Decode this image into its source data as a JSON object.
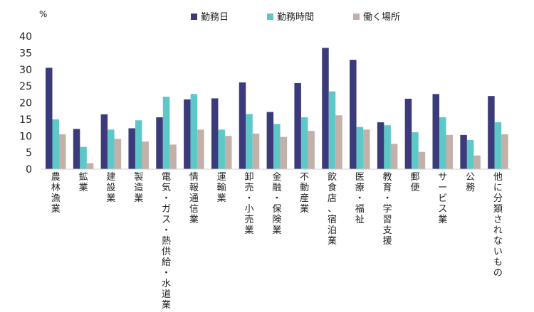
{
  "chart_data": {
    "type": "bar",
    "unit": "%",
    "ylim": [
      0,
      40
    ],
    "yticks": [
      0,
      5,
      10,
      15,
      20,
      25,
      30,
      35,
      40
    ],
    "grid": false,
    "legend_position": "top",
    "categories": [
      "農林漁業",
      "鉱業",
      "建設業",
      "製造業",
      "電気・ガス・熱供給・水道業",
      "情報通信業",
      "運輸業",
      "卸売・小売業",
      "金融・保険業",
      "不動産業",
      "飲食店、宿泊業",
      "医療・福祉",
      "教育・学習支援",
      "郵便",
      "サービス業",
      "公務",
      "他に分類されないもの"
    ],
    "series": [
      {
        "name": "勤務日",
        "color": "#3b3a7a",
        "values": [
          30.5,
          12.1,
          16.5,
          12.3,
          15.6,
          21.0,
          21.3,
          26.1,
          17.2,
          25.9,
          36.5,
          32.9,
          14.1,
          21.2,
          22.6,
          10.3,
          22.0
        ]
      },
      {
        "name": "勤務時間",
        "color": "#5ec8c8",
        "values": [
          15.0,
          6.7,
          11.9,
          14.7,
          21.8,
          22.6,
          11.9,
          16.6,
          13.6,
          15.6,
          23.4,
          12.7,
          13.2,
          11.1,
          15.6,
          8.8,
          14.1
        ]
      },
      {
        "name": "働く場所",
        "color": "#c3b0a8",
        "values": [
          10.5,
          1.8,
          9.1,
          8.3,
          7.4,
          11.9,
          10.0,
          10.7,
          9.7,
          11.5,
          16.2,
          11.9,
          7.6,
          5.2,
          10.3,
          4.1,
          10.5
        ]
      }
    ]
  }
}
